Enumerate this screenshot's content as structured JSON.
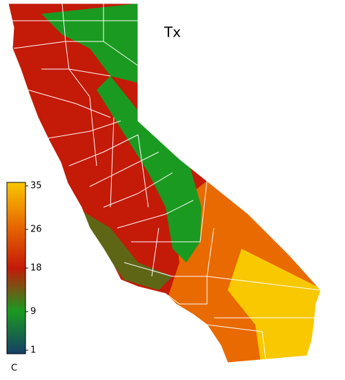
{
  "title": "Tx",
  "colorbar": {
    "unit": "C",
    "range": [
      1,
      35
    ],
    "ticks": [
      1,
      9,
      18,
      26,
      35
    ],
    "colors": [
      "#153f66",
      "#1a9a20",
      "#c41a08",
      "#e86a00",
      "#f8c800"
    ]
  }
}
